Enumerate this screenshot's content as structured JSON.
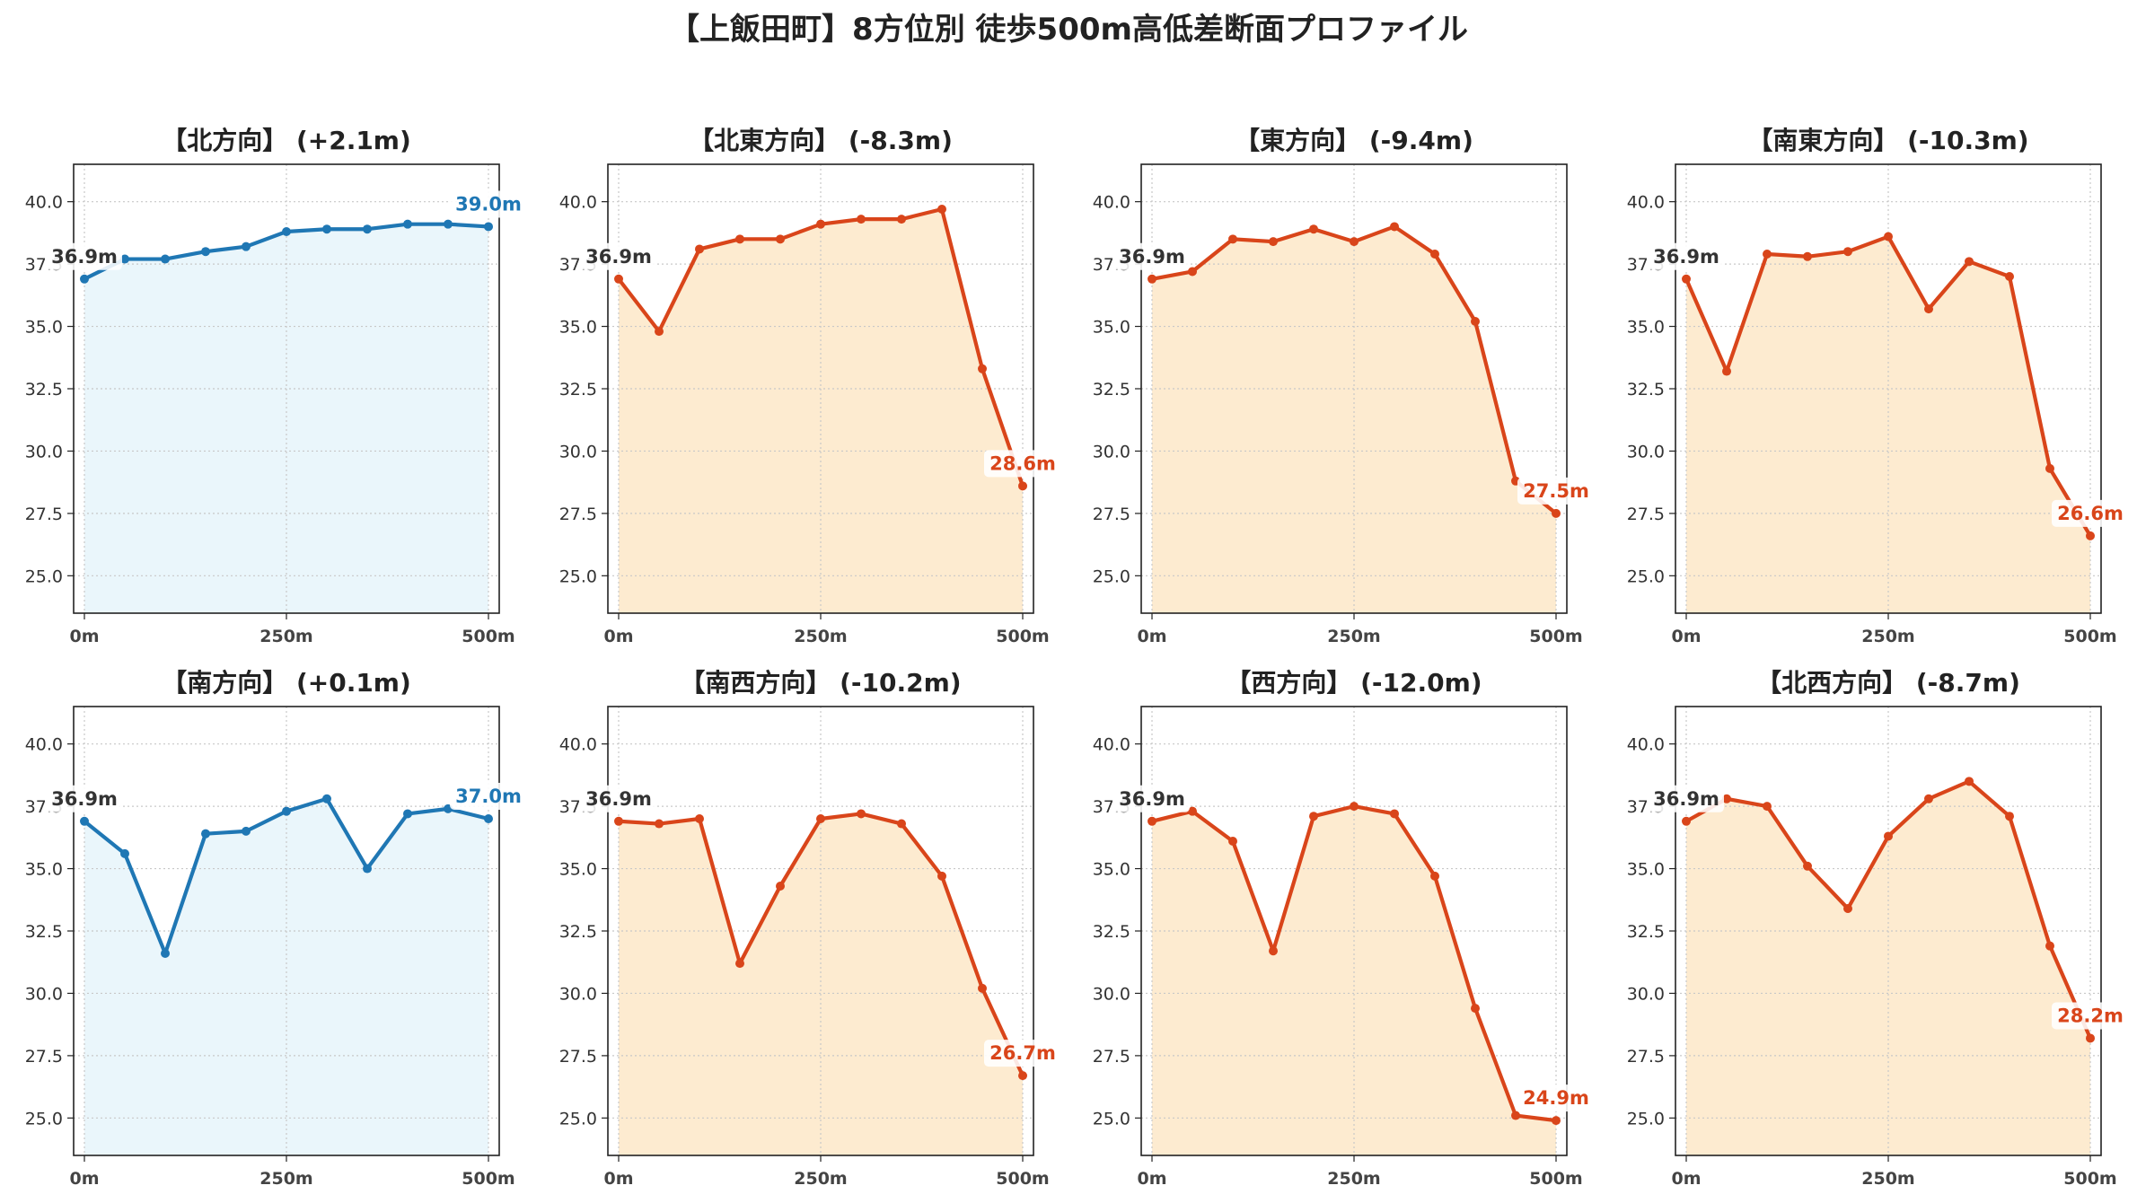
{
  "suptitle": "【上飯田町】8方位別 徒歩500m高低差断面プロファイル",
  "colors": {
    "up_line": "#1f77b4",
    "up_fill": "#eaf6fb",
    "up_label": "#1f77b4",
    "down_line": "#d9451a",
    "down_fill": "#fdebd0",
    "down_label": "#d9451a",
    "start_label": "#333333"
  },
  "chart_data": [
    {
      "type": "line",
      "title": "【北方向】 (+2.1m)",
      "trend": "up",
      "x": [
        0,
        50,
        100,
        150,
        200,
        250,
        300,
        350,
        400,
        450,
        500
      ],
      "y": [
        36.9,
        37.7,
        37.7,
        38.0,
        38.2,
        38.8,
        38.9,
        38.9,
        39.1,
        39.1,
        39.0
      ],
      "start_label": "36.9m",
      "end_label": "39.0m",
      "ylim": [
        23.5,
        41.5
      ],
      "yticks": [
        "25.0",
        "27.5",
        "30.0",
        "32.5",
        "35.0",
        "37.5",
        "40.0"
      ],
      "xticks": [
        "0m",
        "250m",
        "500m"
      ],
      "grid": true
    },
    {
      "type": "line",
      "title": "【北東方向】 (-8.3m)",
      "trend": "down",
      "x": [
        0,
        50,
        100,
        150,
        200,
        250,
        300,
        350,
        400,
        450,
        500
      ],
      "y": [
        36.9,
        34.8,
        38.1,
        38.5,
        38.5,
        39.1,
        39.3,
        39.3,
        39.7,
        33.3,
        28.6
      ],
      "start_label": "36.9m",
      "end_label": "28.6m",
      "ylim": [
        23.5,
        41.5
      ],
      "yticks": [
        "25.0",
        "27.5",
        "30.0",
        "32.5",
        "35.0",
        "37.5",
        "40.0"
      ],
      "xticks": [
        "0m",
        "250m",
        "500m"
      ],
      "grid": true
    },
    {
      "type": "line",
      "title": "【東方向】 (-9.4m)",
      "trend": "down",
      "x": [
        0,
        50,
        100,
        150,
        200,
        250,
        300,
        350,
        400,
        450,
        500
      ],
      "y": [
        36.9,
        37.2,
        38.5,
        38.4,
        38.9,
        38.4,
        39.0,
        37.9,
        35.2,
        28.8,
        27.5
      ],
      "start_label": "36.9m",
      "end_label": "27.5m",
      "ylim": [
        23.5,
        41.5
      ],
      "yticks": [
        "25.0",
        "27.5",
        "30.0",
        "32.5",
        "35.0",
        "37.5",
        "40.0"
      ],
      "xticks": [
        "0m",
        "250m",
        "500m"
      ],
      "grid": true
    },
    {
      "type": "line",
      "title": "【南東方向】 (-10.3m)",
      "trend": "down",
      "x": [
        0,
        50,
        100,
        150,
        200,
        250,
        300,
        350,
        400,
        450,
        500
      ],
      "y": [
        36.9,
        33.2,
        37.9,
        37.8,
        38.0,
        38.6,
        35.7,
        37.6,
        37.0,
        29.3,
        26.6
      ],
      "start_label": "36.9m",
      "end_label": "26.6m",
      "ylim": [
        23.5,
        41.5
      ],
      "yticks": [
        "25.0",
        "27.5",
        "30.0",
        "32.5",
        "35.0",
        "37.5",
        "40.0"
      ],
      "xticks": [
        "0m",
        "250m",
        "500m"
      ],
      "grid": true
    },
    {
      "type": "line",
      "title": "【南方向】 (+0.1m)",
      "trend": "up",
      "x": [
        0,
        50,
        100,
        150,
        200,
        250,
        300,
        350,
        400,
        450,
        500
      ],
      "y": [
        36.9,
        35.6,
        31.6,
        36.4,
        36.5,
        37.3,
        37.8,
        35.0,
        37.2,
        37.4,
        37.0
      ],
      "start_label": "36.9m",
      "end_label": "37.0m",
      "ylim": [
        23.5,
        41.5
      ],
      "yticks": [
        "25.0",
        "27.5",
        "30.0",
        "32.5",
        "35.0",
        "37.5",
        "40.0"
      ],
      "xticks": [
        "0m",
        "250m",
        "500m"
      ],
      "grid": true
    },
    {
      "type": "line",
      "title": "【南西方向】 (-10.2m)",
      "trend": "down",
      "x": [
        0,
        50,
        100,
        150,
        200,
        250,
        300,
        350,
        400,
        450,
        500
      ],
      "y": [
        36.9,
        36.8,
        37.0,
        31.2,
        34.3,
        37.0,
        37.2,
        36.8,
        34.7,
        30.2,
        26.7
      ],
      "start_label": "36.9m",
      "end_label": "26.7m",
      "ylim": [
        23.5,
        41.5
      ],
      "yticks": [
        "25.0",
        "27.5",
        "30.0",
        "32.5",
        "35.0",
        "37.5",
        "40.0"
      ],
      "xticks": [
        "0m",
        "250m",
        "500m"
      ],
      "grid": true
    },
    {
      "type": "line",
      "title": "【西方向】 (-12.0m)",
      "trend": "down",
      "x": [
        0,
        50,
        100,
        150,
        200,
        250,
        300,
        350,
        400,
        450,
        500
      ],
      "y": [
        36.9,
        37.3,
        36.1,
        31.7,
        37.1,
        37.5,
        37.2,
        34.7,
        29.4,
        25.1,
        24.9
      ],
      "start_label": "36.9m",
      "end_label": "24.9m",
      "ylim": [
        23.5,
        41.5
      ],
      "yticks": [
        "25.0",
        "27.5",
        "30.0",
        "32.5",
        "35.0",
        "37.5",
        "40.0"
      ],
      "xticks": [
        "0m",
        "250m",
        "500m"
      ],
      "grid": true
    },
    {
      "type": "line",
      "title": "【北西方向】 (-8.7m)",
      "trend": "down",
      "x": [
        0,
        50,
        100,
        150,
        200,
        250,
        300,
        350,
        400,
        450,
        500
      ],
      "y": [
        36.9,
        37.8,
        37.5,
        35.1,
        33.4,
        36.3,
        37.8,
        38.5,
        37.1,
        31.9,
        28.2
      ],
      "start_label": "36.9m",
      "end_label": "28.2m",
      "ylim": [
        23.5,
        41.5
      ],
      "yticks": [
        "25.0",
        "27.5",
        "30.0",
        "32.5",
        "35.0",
        "37.5",
        "40.0"
      ],
      "xticks": [
        "0m",
        "250m",
        "500m"
      ],
      "grid": true
    }
  ]
}
